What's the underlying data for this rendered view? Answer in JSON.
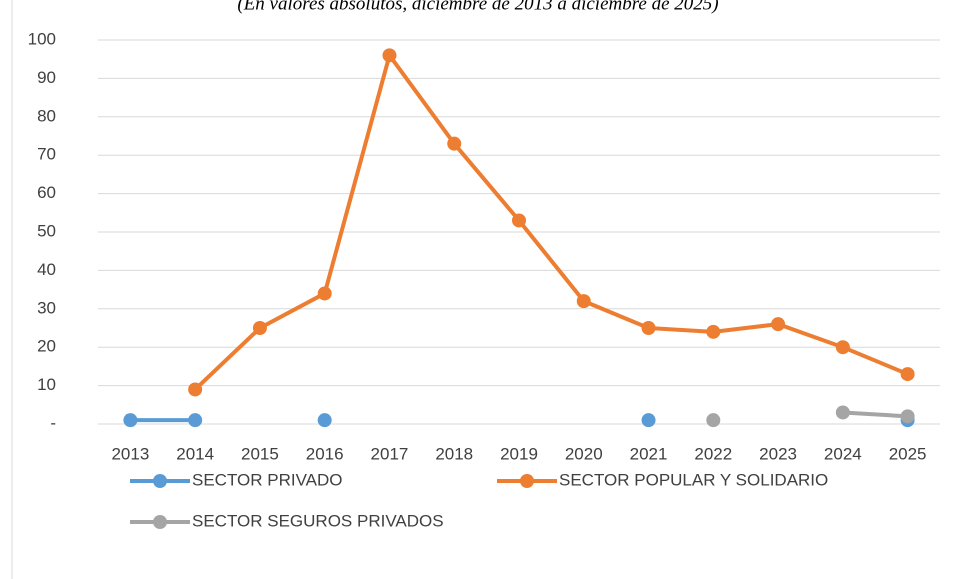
{
  "chart_data": {
    "type": "line",
    "subtitle": "(En valores absolutos, diciembre de 2013 a diciembre de 2025)",
    "categories": [
      "2013",
      "2014",
      "2015",
      "2016",
      "2017",
      "2018",
      "2019",
      "2020",
      "2021",
      "2022",
      "2023",
      "2024",
      "2025"
    ],
    "series": [
      {
        "name": "SECTOR PRIVADO",
        "color": "#5b9bd5",
        "values": [
          1,
          1,
          null,
          1,
          null,
          null,
          null,
          null,
          1,
          null,
          null,
          null,
          1
        ]
      },
      {
        "name": "SECTOR POPULAR Y SOLIDARIO",
        "color": "#ed7d31",
        "values": [
          null,
          9,
          25,
          34,
          96,
          73,
          53,
          32,
          25,
          24,
          26,
          20,
          13
        ]
      },
      {
        "name": "SECTOR SEGUROS PRIVADOS",
        "color": "#a5a5a5",
        "values": [
          null,
          null,
          null,
          null,
          null,
          null,
          null,
          null,
          null,
          1,
          null,
          3,
          2
        ]
      }
    ],
    "ylim": [
      0,
      100
    ],
    "yticks": [
      {
        "value": 0,
        "label": "-"
      },
      10,
      20,
      30,
      40,
      50,
      60,
      70,
      80,
      90,
      100
    ],
    "grid": true
  }
}
